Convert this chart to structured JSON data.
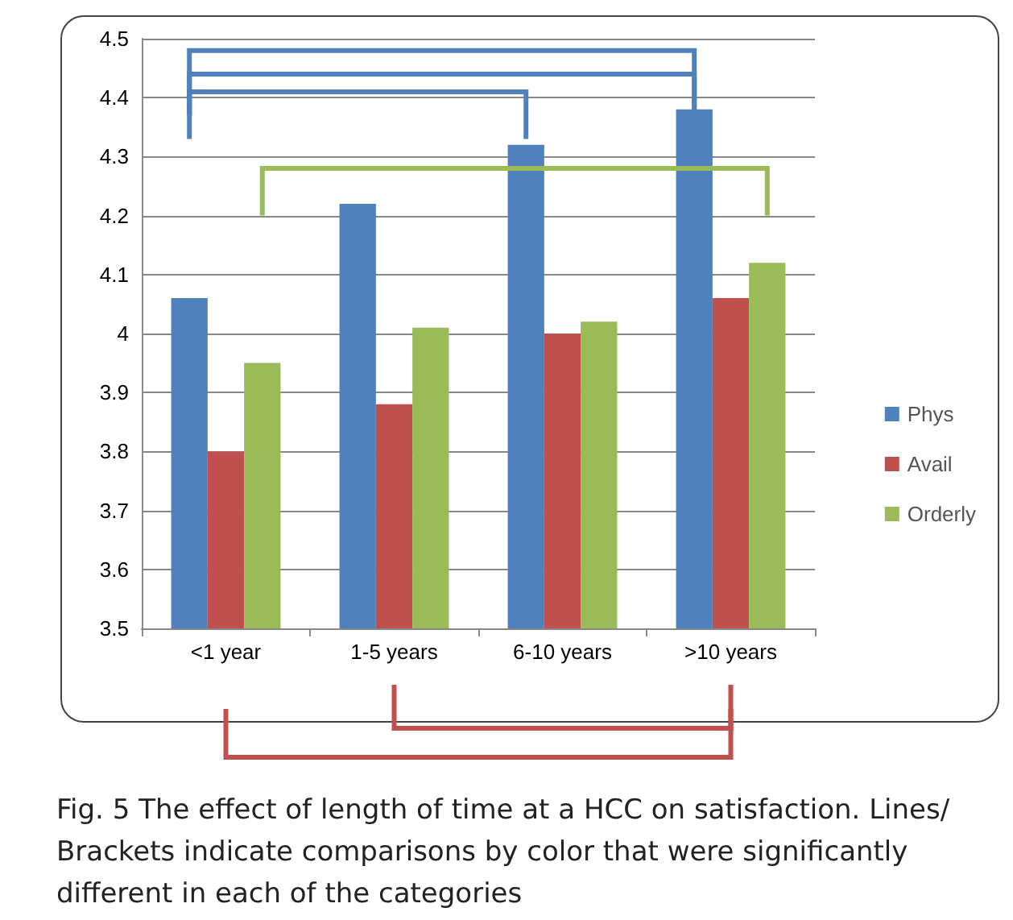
{
  "chart_data": {
    "type": "bar",
    "categories": [
      "<1 year",
      "1-5 years",
      "6-10 years",
      ">10 years"
    ],
    "series": [
      {
        "name": "Phys",
        "color": "#4f81bd",
        "values": [
          4.06,
          4.22,
          4.32,
          4.38
        ]
      },
      {
        "name": "Avail",
        "color": "#c0504d",
        "values": [
          3.8,
          3.88,
          4.0,
          4.06
        ]
      },
      {
        "name": "Orderly",
        "color": "#9bbb59",
        "values": [
          3.95,
          4.01,
          4.02,
          4.12
        ]
      }
    ],
    "ylim": [
      3.5,
      4.5
    ],
    "yticks": [
      3.5,
      3.6,
      3.7,
      3.8,
      3.9,
      4,
      4.1,
      4.2,
      4.3,
      4.4,
      4.5
    ],
    "grid": "y",
    "legend": "right",
    "annotations": [
      "Fig. 5 The effect of length of time at a HCC on satisfaction. Lines/ Brackets indicate comparisons by color that were significantly different in each of the categories"
    ]
  }
}
